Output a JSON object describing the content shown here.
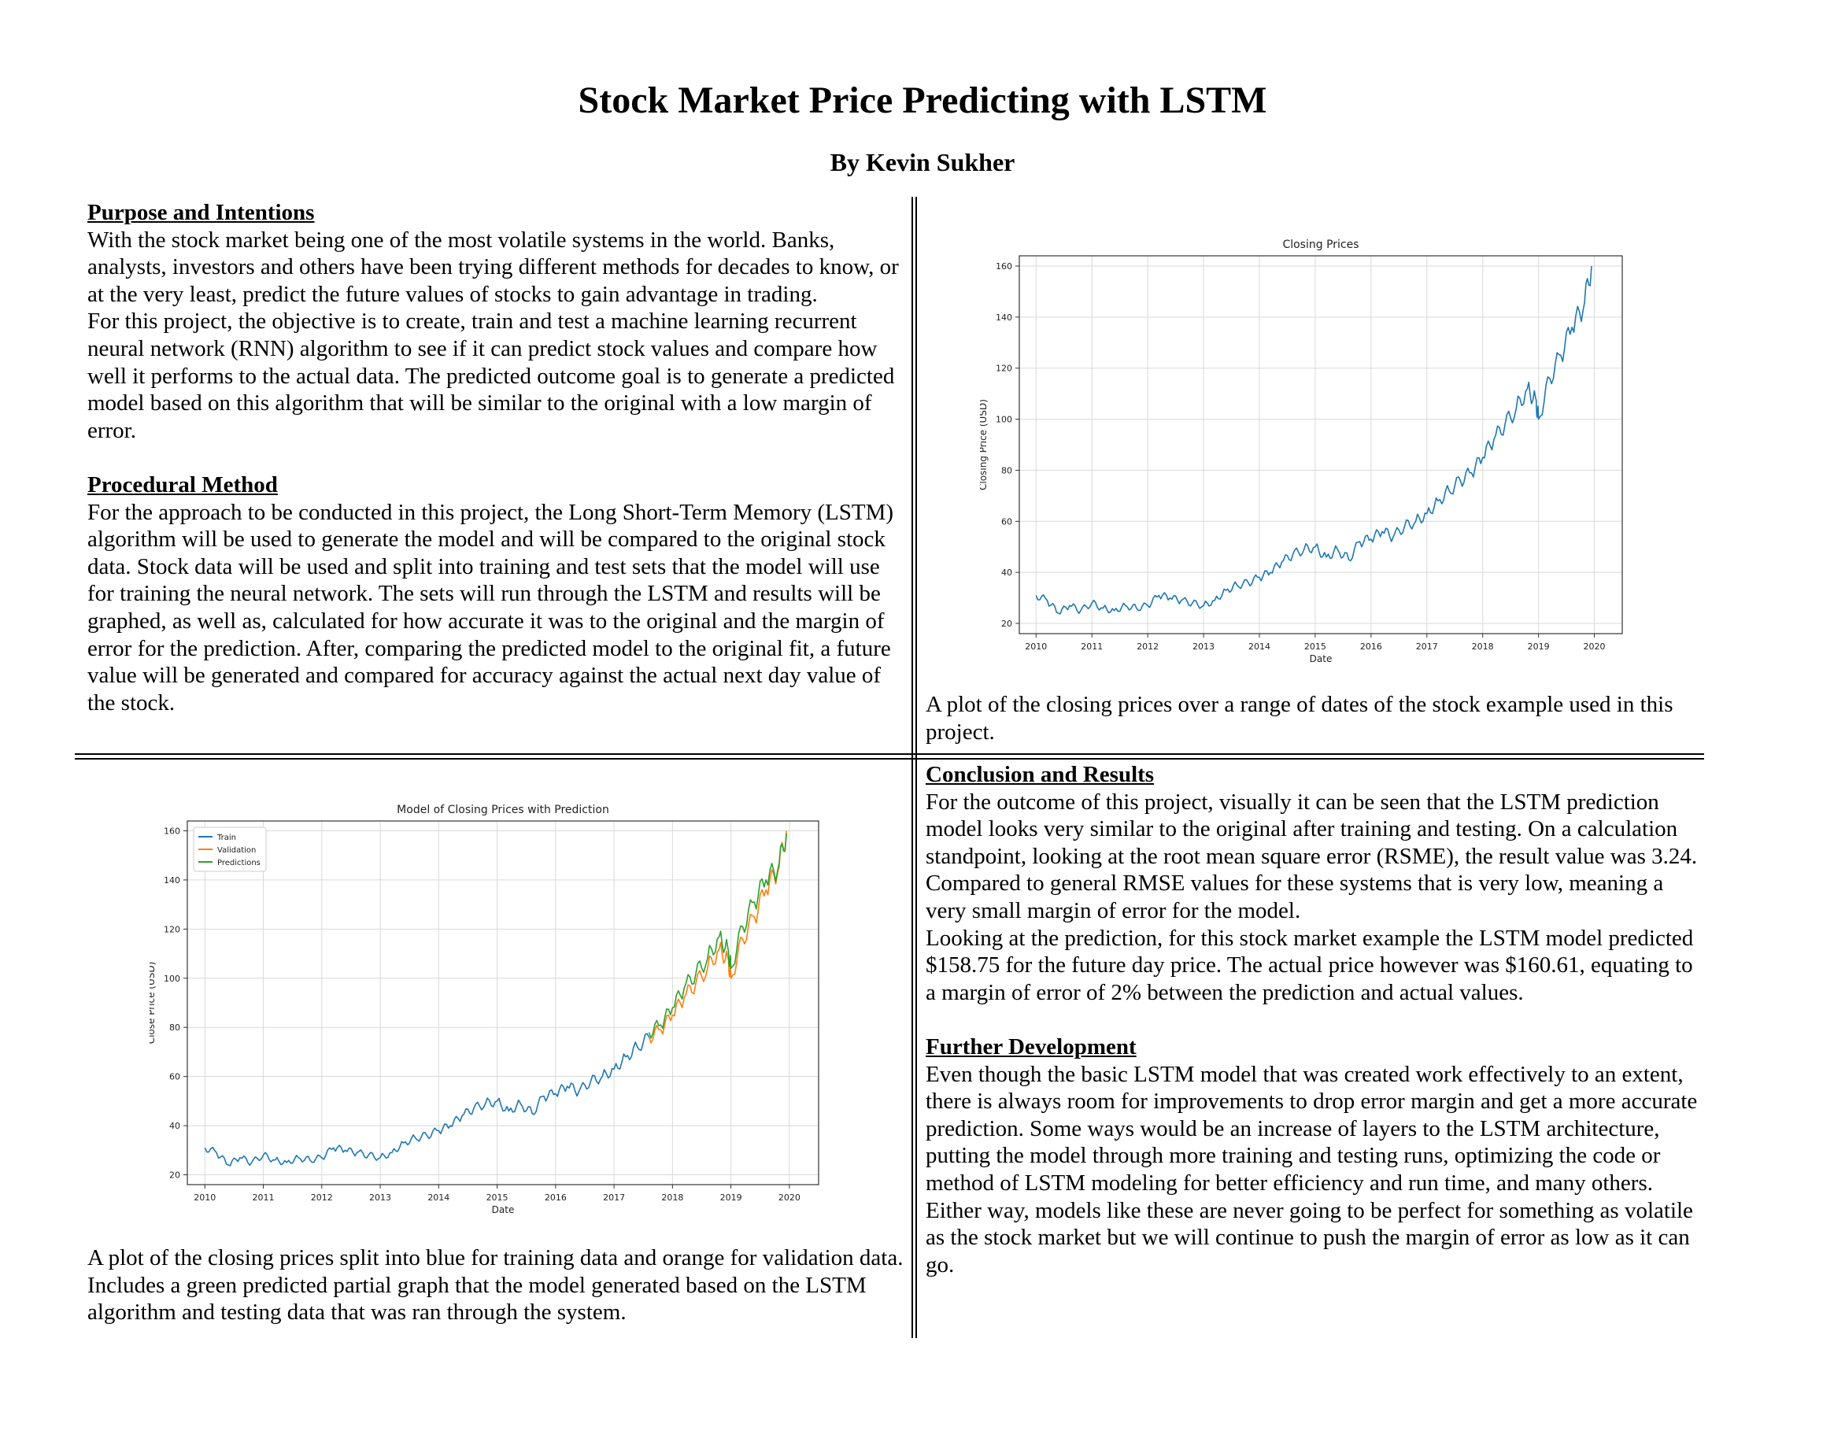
{
  "title": "Stock Market Price Predicting with LSTM",
  "author": "By Kevin Sukher",
  "sections": {
    "purpose": {
      "heading": "Purpose and Intentions",
      "p1": "With the stock market being one of the most volatile systems in the world. Banks, analysts, investors and others have been trying different methods for decades to know, or at the very least, predict the future values of stocks to gain advantage in trading.",
      "p2": "For this project, the objective is to create, train and test a machine learning recurrent neural network (RNN) algorithm to see if it can predict stock values and compare how well it performs to the actual data. The predicted outcome goal is to generate a predicted model based on this algorithm that will be similar to the original with a low margin of error."
    },
    "method": {
      "heading": "Procedural Method",
      "p1": "For the approach to be conducted in this project, the Long Short-Term Memory (LSTM) algorithm will be used to generate the model and will be compared to the original stock data. Stock data will be used and split into training and test sets that the model will use for training the neural network. The sets will run through the LSTM and results will be graphed, as well as, calculated for how accurate it was to the original and the margin of error for the prediction. After, comparing the predicted model to the original fit, a future value will be generated and compared for accuracy against the actual next day value of the stock."
    },
    "conclusion": {
      "heading": "Conclusion and Results",
      "p1": "For the outcome of this project, visually it can be seen that the LSTM prediction model looks very similar to the original after training and testing. On a calculation standpoint, looking at the root mean square error (RSME), the result value was 3.24. Compared to general RMSE values for these systems that is very low, meaning a very small margin of error for the model.",
      "p2": "Looking at the prediction, for this stock market example the LSTM model predicted $158.75 for the future day price. The actual price however was $160.61, equating to a margin of error of 2% between the prediction and actual values."
    },
    "further": {
      "heading": "Further Development",
      "p1": "Even though the basic LSTM model that was created work effectively to an extent, there is always room for improvements to drop error margin and get a more accurate prediction. Some ways would be an increase of layers to the LSTM architecture, putting the model through more training and testing runs, optimizing the code or method of LSTM modeling for better efficiency and run time, and many others. Either way, models like these are never going to be perfect for something as volatile as the stock market but we will continue to push the margin of error as low as it can go."
    }
  },
  "captions": {
    "chart1": "A plot of the closing prices over a range of dates of the stock example used in this project.",
    "chart2": "A plot of the closing prices split into blue for training data and orange for validation data. Includes a green predicted partial graph that the model generated based on the LSTM algorithm and testing data that was ran through the system."
  },
  "colors": {
    "train": "#1f77b4",
    "validation": "#ff7f0e",
    "predictions": "#2ca02c",
    "grid": "#d9d9d9"
  },
  "chart_data": [
    {
      "type": "line",
      "title": "Closing Prices",
      "xlabel": "Date",
      "ylabel": "Closing Price (USD)",
      "xlim": [
        2009.7,
        2020.5
      ],
      "ylim": [
        16,
        164
      ],
      "xticks": [
        "2010",
        "2011",
        "2012",
        "2013",
        "2014",
        "2015",
        "2016",
        "2017",
        "2018",
        "2019",
        "2020"
      ],
      "yticks": [
        20,
        40,
        60,
        80,
        100,
        120,
        140,
        160
      ],
      "grid": true,
      "series": [
        {
          "color": "#1f77b4",
          "x": [
            2010.0,
            2010.2,
            2010.4,
            2010.6,
            2010.8,
            2011.0,
            2011.2,
            2011.4,
            2011.6,
            2011.8,
            2012.0,
            2012.2,
            2012.4,
            2012.6,
            2012.8,
            2013.0,
            2013.2,
            2013.4,
            2013.6,
            2013.8,
            2014.0,
            2014.2,
            2014.4,
            2014.6,
            2014.8,
            2015.0,
            2015.2,
            2015.4,
            2015.6,
            2015.8,
            2016.0,
            2016.2,
            2016.4,
            2016.6,
            2016.8,
            2017.0,
            2017.2,
            2017.4,
            2017.6,
            2017.8,
            2018.0,
            2018.2,
            2018.4,
            2018.6,
            2018.8,
            2018.95,
            2019.0,
            2019.2,
            2019.4,
            2019.6,
            2019.8,
            2019.95
          ],
          "y": [
            31,
            29,
            24,
            27,
            25,
            28,
            26,
            25,
            27,
            26,
            27,
            31,
            30,
            29,
            28,
            27,
            29,
            33,
            35,
            36,
            38,
            40,
            44,
            47,
            49,
            50,
            46,
            49,
            45,
            52,
            53,
            56,
            54,
            58,
            60,
            63,
            68,
            72,
            76,
            79,
            85,
            92,
            98,
            104,
            112,
            108,
            100,
            116,
            125,
            136,
            143,
            160
          ]
        }
      ]
    },
    {
      "type": "line",
      "title": "Model of Closing Prices with Prediction",
      "xlabel": "Date",
      "ylabel": "Close Price (USD)",
      "xlim": [
        2009.7,
        2020.5
      ],
      "ylim": [
        16,
        164
      ],
      "xticks": [
        "2010",
        "2011",
        "2012",
        "2013",
        "2014",
        "2015",
        "2016",
        "2017",
        "2018",
        "2019",
        "2020"
      ],
      "yticks": [
        20,
        40,
        60,
        80,
        100,
        120,
        140,
        160
      ],
      "grid": true,
      "legend": "top-left",
      "series": [
        {
          "name": "Train",
          "color": "#1f77b4",
          "x": [
            2010.0,
            2010.2,
            2010.4,
            2010.6,
            2010.8,
            2011.0,
            2011.2,
            2011.4,
            2011.6,
            2011.8,
            2012.0,
            2012.2,
            2012.4,
            2012.6,
            2012.8,
            2013.0,
            2013.2,
            2013.4,
            2013.6,
            2013.8,
            2014.0,
            2014.2,
            2014.4,
            2014.6,
            2014.8,
            2015.0,
            2015.2,
            2015.4,
            2015.6,
            2015.8,
            2016.0,
            2016.2,
            2016.4,
            2016.6,
            2016.8,
            2017.0,
            2017.2,
            2017.4,
            2017.6
          ],
          "y": [
            31,
            29,
            24,
            27,
            25,
            28,
            26,
            25,
            27,
            26,
            27,
            31,
            30,
            29,
            28,
            27,
            29,
            33,
            35,
            36,
            38,
            40,
            44,
            47,
            49,
            50,
            46,
            49,
            45,
            52,
            53,
            56,
            54,
            58,
            60,
            63,
            68,
            72,
            76
          ]
        },
        {
          "name": "Validation",
          "color": "#ff7f0e",
          "x": [
            2017.6,
            2017.8,
            2018.0,
            2018.2,
            2018.4,
            2018.6,
            2018.8,
            2018.95,
            2019.0,
            2019.2,
            2019.4,
            2019.6,
            2019.8,
            2019.95
          ],
          "y": [
            76,
            79,
            85,
            92,
            98,
            104,
            112,
            108,
            100,
            116,
            125,
            136,
            143,
            160
          ]
        },
        {
          "name": "Predictions",
          "color": "#2ca02c",
          "x": [
            2017.6,
            2017.8,
            2018.0,
            2018.2,
            2018.4,
            2018.6,
            2018.8,
            2018.95,
            2019.0,
            2019.2,
            2019.4,
            2019.6,
            2019.8,
            2019.95
          ],
          "y": [
            78,
            81,
            88,
            96,
            102,
            108,
            117,
            112,
            104,
            121,
            131,
            140,
            144,
            159
          ]
        }
      ]
    }
  ]
}
